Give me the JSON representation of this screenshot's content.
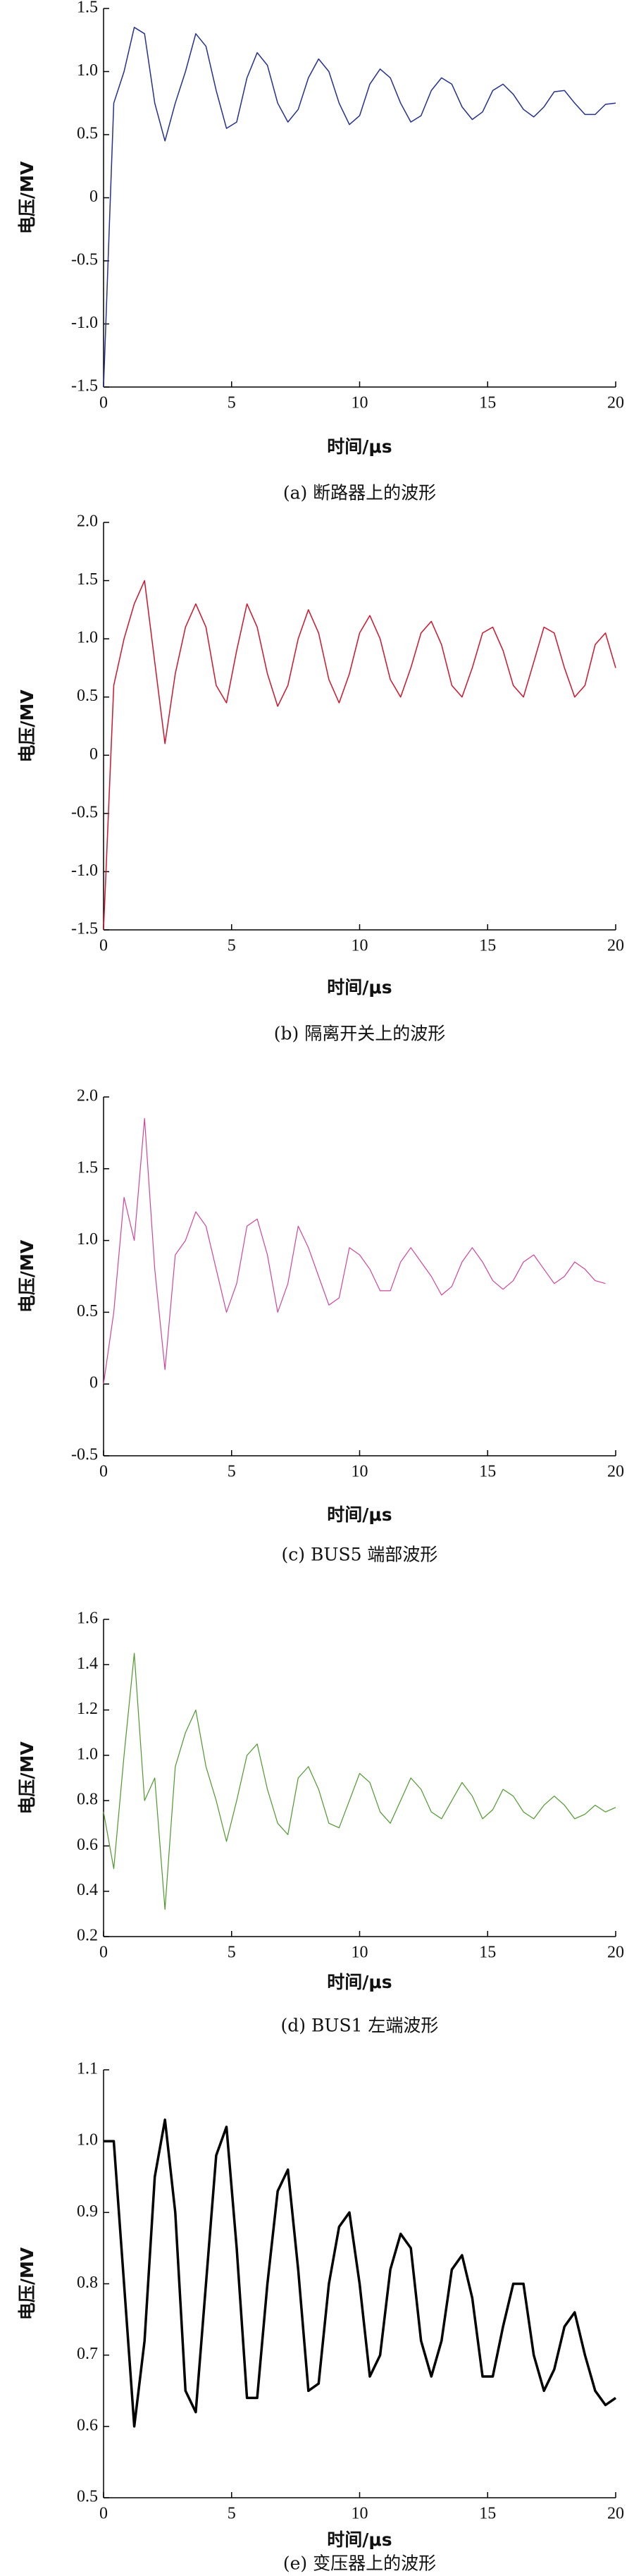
{
  "chart_data": [
    {
      "type": "line",
      "ylabel": "电压/MV",
      "xlabel": "时间/μs",
      "caption": "(a) 断路器上的波形",
      "color": "#25308f",
      "line_width": 1.5,
      "xlim": [
        0,
        20
      ],
      "xticks": [
        0,
        5,
        10,
        15,
        20
      ],
      "ylim": [
        -1.5,
        1.5
      ],
      "yticks": [
        -1.5,
        {
          "value": -1,
          "label": "-1.0"
        },
        -0.5,
        0,
        0.5,
        {
          "value": 1,
          "label": "1.0"
        },
        1.5
      ],
      "x": [
        0,
        0.4,
        0.8,
        1.2,
        1.6,
        2,
        2.4,
        2.8,
        3.2,
        3.6,
        4,
        4.4,
        4.8,
        5.2,
        5.6,
        6,
        6.4,
        6.8,
        7.2,
        7.6,
        8,
        8.4,
        8.8,
        9.2,
        9.6,
        10,
        10.4,
        10.8,
        11.2,
        11.6,
        12,
        12.4,
        12.8,
        13.2,
        13.6,
        14,
        14.4,
        14.8,
        15.2,
        15.6,
        16,
        16.4,
        16.8,
        17.2,
        17.6,
        18,
        18.4,
        18.8,
        19.2,
        19.6,
        20
      ],
      "values": [
        -1.5,
        0.75,
        1.0,
        1.35,
        1.3,
        0.75,
        0.45,
        0.75,
        1.0,
        1.3,
        1.2,
        0.85,
        0.55,
        0.6,
        0.95,
        1.15,
        1.05,
        0.75,
        0.6,
        0.7,
        0.95,
        1.1,
        1.0,
        0.75,
        0.58,
        0.65,
        0.9,
        1.02,
        0.95,
        0.75,
        0.6,
        0.65,
        0.85,
        0.95,
        0.9,
        0.72,
        0.62,
        0.68,
        0.85,
        0.9,
        0.82,
        0.7,
        0.64,
        0.72,
        0.84,
        0.85,
        0.75,
        0.66,
        0.66,
        0.74,
        0.75
      ]
    },
    {
      "type": "line",
      "ylabel": "电压/MV",
      "xlabel": "时间/μs",
      "caption": "(b) 隔离开关上的波形",
      "color": "#d0142c",
      "line_width": 1.5,
      "xlim": [
        0,
        20
      ],
      "xticks": [
        0,
        5,
        10,
        15,
        20
      ],
      "ylim": [
        -1.5,
        2
      ],
      "yticks": [
        -1.5,
        {
          "value": -1,
          "label": "-1.0"
        },
        -0.5,
        0,
        0.5,
        {
          "value": 1,
          "label": "1.0"
        },
        1.5,
        {
          "value": 2,
          "label": "2.0"
        }
      ],
      "x": [
        0,
        0.4,
        0.8,
        1.2,
        1.6,
        2,
        2.4,
        2.8,
        3.2,
        3.6,
        4,
        4.4,
        4.8,
        5.2,
        5.6,
        6,
        6.4,
        6.8,
        7.2,
        7.6,
        8,
        8.4,
        8.8,
        9.2,
        9.6,
        10,
        10.4,
        10.8,
        11.2,
        11.6,
        12,
        12.4,
        12.8,
        13.2,
        13.6,
        14,
        14.4,
        14.8,
        15.2,
        15.6,
        16,
        16.4,
        16.8,
        17.2,
        17.6,
        18,
        18.4,
        18.8,
        19.2,
        19.6,
        20
      ],
      "values": [
        -1.5,
        0.6,
        1.0,
        1.3,
        1.5,
        0.8,
        0.1,
        0.7,
        1.1,
        1.3,
        1.1,
        0.6,
        0.45,
        0.9,
        1.3,
        1.1,
        0.7,
        0.42,
        0.6,
        1.0,
        1.25,
        1.05,
        0.65,
        0.45,
        0.7,
        1.05,
        1.2,
        1.0,
        0.65,
        0.5,
        0.75,
        1.05,
        1.15,
        0.95,
        0.6,
        0.5,
        0.75,
        1.05,
        1.1,
        0.9,
        0.6,
        0.5,
        0.8,
        1.1,
        1.05,
        0.75,
        0.5,
        0.6,
        0.95,
        1.05,
        0.75
      ]
    },
    {
      "type": "line",
      "ylabel": "电压/MV",
      "xlabel": "时间/μs",
      "caption": "(c) BUS5 端部波形",
      "color": "#d0459c",
      "line_width": 1.2,
      "xlim": [
        0,
        20
      ],
      "xticks": [
        0,
        5,
        10,
        15,
        20
      ],
      "ylim": [
        -0.5,
        2
      ],
      "yticks": [
        -0.5,
        0,
        0.5,
        {
          "value": 1,
          "label": "1.0"
        },
        1.5,
        {
          "value": 2,
          "label": "2.0"
        }
      ],
      "x": [
        0,
        0.4,
        0.8,
        1.2,
        1.6,
        2,
        2.4,
        2.8,
        3.2,
        3.6,
        4,
        4.4,
        4.8,
        5.2,
        5.6,
        6,
        6.4,
        6.8,
        7.2,
        7.6,
        8,
        8.4,
        8.8,
        9.2,
        9.6,
        10,
        10.4,
        10.8,
        11.2,
        11.6,
        12,
        12.4,
        12.8,
        13.2,
        13.6,
        14,
        14.4,
        14.8,
        15.2,
        15.6,
        16,
        16.4,
        16.8,
        17.2,
        17.6,
        18,
        18.4,
        18.8,
        19.2,
        19.6
      ],
      "values": [
        0,
        0.5,
        1.3,
        1.0,
        1.85,
        0.8,
        0.1,
        0.9,
        1.0,
        1.2,
        1.1,
        0.8,
        0.5,
        0.7,
        1.1,
        1.15,
        0.9,
        0.5,
        0.7,
        1.1,
        0.95,
        0.75,
        0.55,
        0.6,
        0.95,
        0.9,
        0.8,
        0.65,
        0.65,
        0.85,
        0.95,
        0.85,
        0.75,
        0.62,
        0.68,
        0.85,
        0.95,
        0.85,
        0.72,
        0.66,
        0.72,
        0.85,
        0.9,
        0.8,
        0.7,
        0.75,
        0.85,
        0.8,
        0.72,
        0.7
      ]
    },
    {
      "type": "line",
      "ylabel": "电压/MV",
      "xlabel": "时间/μs",
      "caption": "(d) BUS1 左端波形",
      "color": "#4c9a2c",
      "line_width": 1.2,
      "xlim": [
        0,
        20
      ],
      "xticks": [
        0,
        5,
        10,
        15,
        20
      ],
      "ylim": [
        0.2,
        1.6
      ],
      "yticks": [
        0.2,
        0.4,
        0.6,
        0.8,
        {
          "value": 1,
          "label": "1.0"
        },
        1.2,
        1.4,
        1.6
      ],
      "x": [
        0,
        0.4,
        0.8,
        1.2,
        1.6,
        2,
        2.4,
        2.8,
        3.2,
        3.6,
        4,
        4.4,
        4.8,
        5.2,
        5.6,
        6,
        6.4,
        6.8,
        7.2,
        7.6,
        8,
        8.4,
        8.8,
        9.2,
        9.6,
        10,
        10.4,
        10.8,
        11.2,
        11.6,
        12,
        12.4,
        12.8,
        13.2,
        13.6,
        14,
        14.4,
        14.8,
        15.2,
        15.6,
        16,
        16.4,
        16.8,
        17.2,
        17.6,
        18,
        18.4,
        18.8,
        19.2,
        19.6,
        20
      ],
      "values": [
        0.75,
        0.5,
        1.0,
        1.45,
        0.8,
        0.9,
        0.32,
        0.95,
        1.1,
        1.2,
        0.95,
        0.8,
        0.62,
        0.8,
        1.0,
        1.05,
        0.85,
        0.7,
        0.65,
        0.9,
        0.95,
        0.85,
        0.7,
        0.68,
        0.8,
        0.92,
        0.88,
        0.75,
        0.7,
        0.8,
        0.9,
        0.85,
        0.75,
        0.72,
        0.8,
        0.88,
        0.82,
        0.72,
        0.76,
        0.85,
        0.82,
        0.75,
        0.72,
        0.78,
        0.82,
        0.78,
        0.72,
        0.74,
        0.78,
        0.75,
        0.77
      ]
    },
    {
      "type": "line",
      "ylabel": "电压/MV",
      "xlabel": "时间/μs",
      "caption": "(e) 变压器上的波形",
      "color": "#000000",
      "line_width": 3.5,
      "xlim": [
        0,
        20
      ],
      "xticks": [
        0,
        5,
        10,
        15,
        20
      ],
      "ylim": [
        0.5,
        1.1
      ],
      "yticks": [
        0.5,
        0.6,
        0.7,
        0.8,
        0.9,
        {
          "value": 1,
          "label": "1.0"
        },
        1.1
      ],
      "x": [
        0,
        0.4,
        0.8,
        1.2,
        1.6,
        2,
        2.4,
        2.8,
        3.2,
        3.6,
        4,
        4.4,
        4.8,
        5.2,
        5.6,
        6,
        6.4,
        6.8,
        7.2,
        7.6,
        8,
        8.4,
        8.8,
        9.2,
        9.6,
        10,
        10.4,
        10.8,
        11.2,
        11.6,
        12,
        12.4,
        12.8,
        13.2,
        13.6,
        14,
        14.4,
        14.8,
        15.2,
        15.6,
        16,
        16.4,
        16.8,
        17.2,
        17.6,
        18,
        18.4,
        18.8,
        19.2,
        19.6,
        20
      ],
      "values": [
        1.0,
        1.0,
        0.8,
        0.6,
        0.72,
        0.95,
        1.03,
        0.9,
        0.65,
        0.62,
        0.8,
        0.98,
        1.02,
        0.85,
        0.64,
        0.64,
        0.8,
        0.93,
        0.96,
        0.82,
        0.65,
        0.66,
        0.8,
        0.88,
        0.9,
        0.8,
        0.67,
        0.7,
        0.82,
        0.87,
        0.85,
        0.72,
        0.67,
        0.72,
        0.82,
        0.84,
        0.78,
        0.67,
        0.67,
        0.74,
        0.8,
        0.8,
        0.7,
        0.65,
        0.68,
        0.74,
        0.76,
        0.7,
        0.65,
        0.63,
        0.64
      ]
    }
  ]
}
